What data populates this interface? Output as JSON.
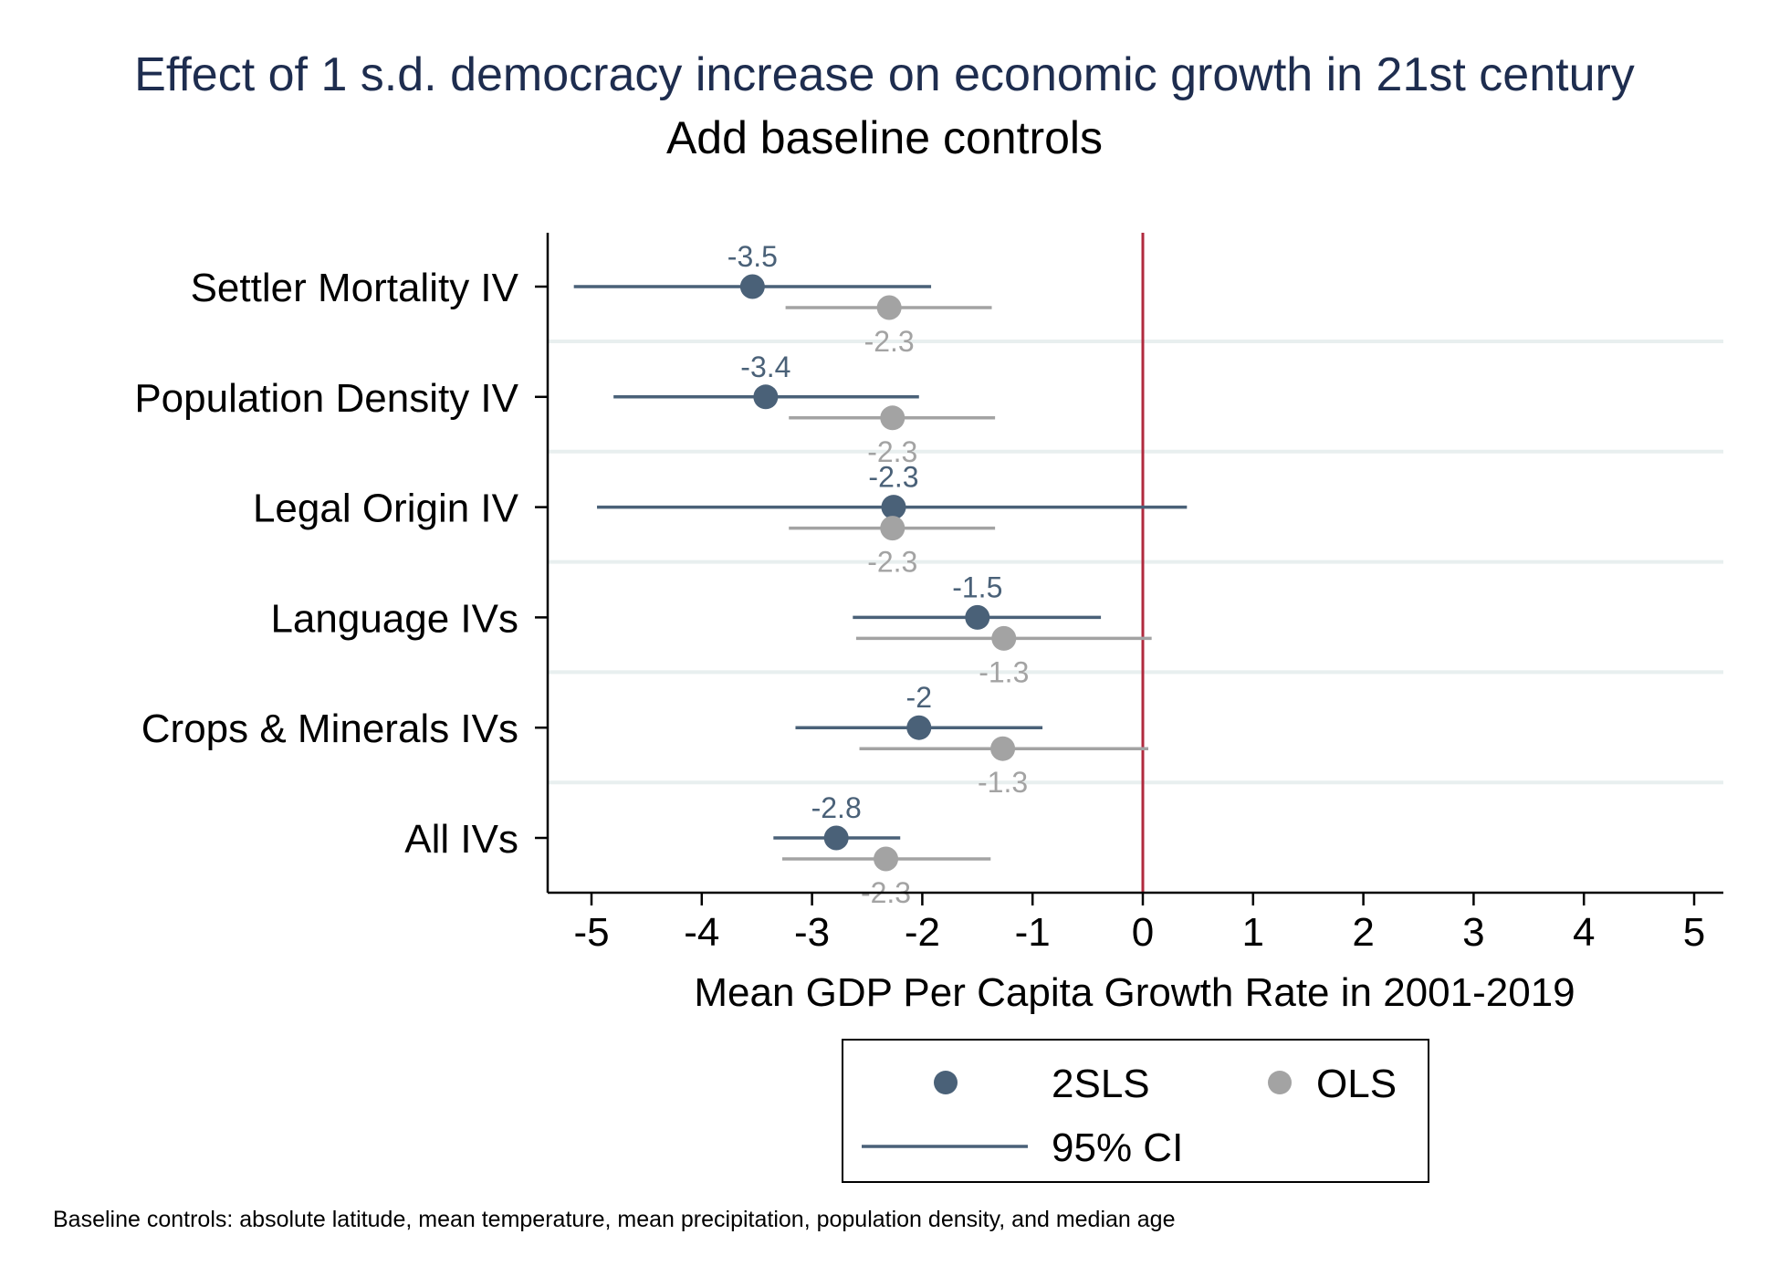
{
  "title": "Effect of 1 s.d. democracy increase on economic growth in 21st century",
  "subtitle": "Add baseline controls",
  "note": "Baseline controls: absolute latitude, mean temperature, mean precipitation, population density, and median age",
  "colors": {
    "twosls": "#4a6178",
    "ols": "#a3a3a3",
    "zero_line": "#b02a3e",
    "grid": "#e8efef",
    "title": "#1e2d4f"
  },
  "chart_data": {
    "type": "scatter",
    "xlabel": "Mean GDP Per Capita Growth Rate in 2001-2019",
    "xlim": [
      -5.4,
      5.3
    ],
    "xticks": [
      "-5",
      "-4",
      "-3",
      "-2",
      "-1",
      "0",
      "1",
      "2",
      "3",
      "4",
      "5"
    ],
    "reference_line_x": 0,
    "categories": [
      "Settler Mortality IV",
      "Population Density IV",
      "Legal Origin IV",
      "Language IVs",
      "Crops & Minerals IVs",
      "All IVs"
    ],
    "series": [
      {
        "name": "2SLS",
        "values": [
          -3.54,
          -3.42,
          -2.26,
          -1.5,
          -2.03,
          -2.78
        ],
        "labels": [
          "-3.5",
          "-3.4",
          "-2.3",
          "-1.5",
          "-2",
          "-2.8"
        ],
        "ci": [
          [
            -5.16,
            -1.92
          ],
          [
            -4.8,
            -2.03
          ],
          [
            -4.95,
            0.4
          ],
          [
            -2.63,
            -0.38
          ],
          [
            -3.15,
            -0.91
          ],
          [
            -3.35,
            -2.2
          ]
        ]
      },
      {
        "name": "OLS",
        "values": [
          -2.3,
          -2.27,
          -2.27,
          -1.26,
          -1.27,
          -2.33
        ],
        "labels": [
          "-2.3",
          "-2.3",
          "-2.3",
          "-1.3",
          "-1.3",
          "-2.3"
        ],
        "ci": [
          [
            -3.24,
            -1.37
          ],
          [
            -3.21,
            -1.34
          ],
          [
            -3.21,
            -1.34
          ],
          [
            -2.6,
            0.08
          ],
          [
            -2.57,
            0.05
          ],
          [
            -3.27,
            -1.38
          ]
        ]
      }
    ],
    "legend": {
      "position": "bottom",
      "items": [
        "2SLS",
        "OLS",
        "95% CI"
      ]
    },
    "grid": true
  }
}
